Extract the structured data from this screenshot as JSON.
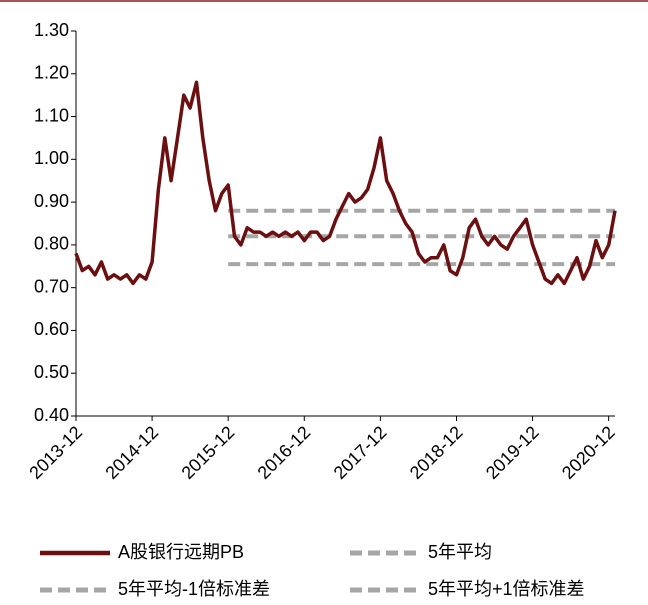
{
  "chart_data": {
    "type": "line",
    "categories": [
      "2013-12",
      null,
      null,
      null,
      null,
      null,
      null,
      null,
      null,
      null,
      null,
      null,
      "2014-12",
      null,
      null,
      null,
      null,
      null,
      null,
      null,
      null,
      null,
      null,
      null,
      "2015-12",
      null,
      null,
      null,
      null,
      null,
      null,
      null,
      null,
      null,
      null,
      null,
      "2016-12",
      null,
      null,
      null,
      null,
      null,
      null,
      null,
      null,
      null,
      null,
      null,
      "2017-12",
      null,
      null,
      null,
      null,
      null,
      null,
      null,
      null,
      null,
      null,
      null,
      "2018-12",
      null,
      null,
      null,
      null,
      null,
      null,
      null,
      null,
      null,
      null,
      null,
      "2019-12",
      null,
      null,
      null,
      null,
      null,
      null,
      null,
      null,
      null,
      null,
      null,
      "2020-12",
      null
    ],
    "series": [
      {
        "name": "A股银行远期PB",
        "color": "#6b0f10",
        "dashed": false,
        "values": [
          0.78,
          0.74,
          0.75,
          0.73,
          0.76,
          0.72,
          0.73,
          0.72,
          0.73,
          0.71,
          0.73,
          0.72,
          0.76,
          0.93,
          1.05,
          0.95,
          1.05,
          1.15,
          1.12,
          1.18,
          1.05,
          0.95,
          0.88,
          0.92,
          0.94,
          0.82,
          0.8,
          0.84,
          0.83,
          0.83,
          0.82,
          0.83,
          0.82,
          0.83,
          0.82,
          0.83,
          0.81,
          0.83,
          0.83,
          0.81,
          0.82,
          0.86,
          0.89,
          0.92,
          0.9,
          0.91,
          0.93,
          0.98,
          1.05,
          0.95,
          0.92,
          0.88,
          0.85,
          0.83,
          0.78,
          0.76,
          0.77,
          0.77,
          0.8,
          0.74,
          0.73,
          0.77,
          0.84,
          0.86,
          0.82,
          0.8,
          0.82,
          0.8,
          0.79,
          0.82,
          0.84,
          0.86,
          0.8,
          0.76,
          0.72,
          0.71,
          0.73,
          0.71,
          0.74,
          0.77,
          0.72,
          0.75,
          0.81,
          0.77,
          0.8,
          0.88
        ]
      },
      {
        "name": "5年平均",
        "color": "#a6a6a6",
        "dashed": true,
        "values": [
          null,
          null,
          null,
          null,
          null,
          null,
          null,
          null,
          null,
          null,
          null,
          null,
          null,
          null,
          null,
          null,
          null,
          null,
          null,
          null,
          null,
          null,
          null,
          null,
          0.82,
          0.82,
          0.82,
          0.82,
          0.82,
          0.82,
          0.82,
          0.82,
          0.82,
          0.82,
          0.82,
          0.82,
          0.82,
          0.82,
          0.82,
          0.82,
          0.82,
          0.82,
          0.82,
          0.82,
          0.82,
          0.82,
          0.82,
          0.82,
          0.82,
          0.82,
          0.82,
          0.82,
          0.82,
          0.82,
          0.82,
          0.82,
          0.82,
          0.82,
          0.82,
          0.82,
          0.82,
          0.82,
          0.82,
          0.82,
          0.82,
          0.82,
          0.82,
          0.82,
          0.82,
          0.82,
          0.82,
          0.82,
          0.82,
          0.82,
          0.82,
          0.82,
          0.82,
          0.82,
          0.82,
          0.82,
          0.82,
          0.82,
          0.82,
          0.82,
          0.82,
          0.82
        ]
      },
      {
        "name": "5年平均-1倍标准差",
        "color": "#a6a6a6",
        "dashed": true,
        "values": [
          null,
          null,
          null,
          null,
          null,
          null,
          null,
          null,
          null,
          null,
          null,
          null,
          null,
          null,
          null,
          null,
          null,
          null,
          null,
          null,
          null,
          null,
          null,
          null,
          0.755,
          0.755,
          0.755,
          0.755,
          0.755,
          0.755,
          0.755,
          0.755,
          0.755,
          0.755,
          0.755,
          0.755,
          0.755,
          0.755,
          0.755,
          0.755,
          0.755,
          0.755,
          0.755,
          0.755,
          0.755,
          0.755,
          0.755,
          0.755,
          0.755,
          0.755,
          0.755,
          0.755,
          0.755,
          0.755,
          0.755,
          0.755,
          0.755,
          0.755,
          0.755,
          0.755,
          0.755,
          0.755,
          0.755,
          0.755,
          0.755,
          0.755,
          0.755,
          0.755,
          0.755,
          0.755,
          0.755,
          0.755,
          0.755,
          0.755,
          0.755,
          0.755,
          0.755,
          0.755,
          0.755,
          0.755,
          0.755,
          0.755,
          0.755,
          0.755,
          0.755,
          0.755
        ]
      },
      {
        "name": "5年平均+1倍标准差",
        "color": "#a6a6a6",
        "dashed": true,
        "values": [
          null,
          null,
          null,
          null,
          null,
          null,
          null,
          null,
          null,
          null,
          null,
          null,
          null,
          null,
          null,
          null,
          null,
          null,
          null,
          null,
          null,
          null,
          null,
          null,
          0.88,
          0.88,
          0.88,
          0.88,
          0.88,
          0.88,
          0.88,
          0.88,
          0.88,
          0.88,
          0.88,
          0.88,
          0.88,
          0.88,
          0.88,
          0.88,
          0.88,
          0.88,
          0.88,
          0.88,
          0.88,
          0.88,
          0.88,
          0.88,
          0.88,
          0.88,
          0.88,
          0.88,
          0.88,
          0.88,
          0.88,
          0.88,
          0.88,
          0.88,
          0.88,
          0.88,
          0.88,
          0.88,
          0.88,
          0.88,
          0.88,
          0.88,
          0.88,
          0.88,
          0.88,
          0.88,
          0.88,
          0.88,
          0.88,
          0.88,
          0.88,
          0.88,
          0.88,
          0.88,
          0.88,
          0.88,
          0.88,
          0.88,
          0.88,
          0.88,
          0.88,
          0.88
        ]
      }
    ],
    "ylim": [
      0.4,
      1.3
    ],
    "yticks": [
      {
        "value": 0.4,
        "label": "0.40"
      },
      {
        "value": 0.5,
        "label": "0.50"
      },
      {
        "value": 0.6,
        "label": "0.60"
      },
      {
        "value": 0.7,
        "label": "0.70"
      },
      {
        "value": 0.8,
        "label": "0.80"
      },
      {
        "value": 0.9,
        "label": "0.90"
      },
      {
        "value": 1.0,
        "label": "1.00"
      },
      {
        "value": 1.1,
        "label": "1.10"
      },
      {
        "value": 1.2,
        "label": "1.20"
      },
      {
        "value": 1.3,
        "label": "1.30"
      }
    ],
    "grid": false,
    "legend": "bottom"
  }
}
